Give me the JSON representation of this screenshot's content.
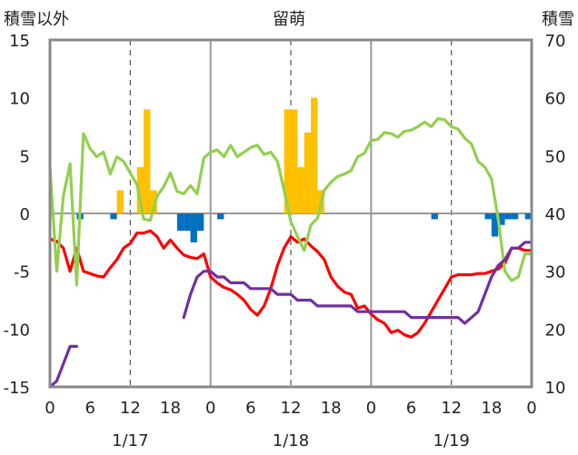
{
  "chart_data": {
    "type": "bar",
    "title": "留萌",
    "left_axis_label": "積雪以外",
    "right_axis_label": "積雪",
    "x_tick_labels": [
      "0",
      "6",
      "12",
      "18",
      "0",
      "6",
      "12",
      "18",
      "0",
      "6",
      "12",
      "18",
      "0"
    ],
    "date_labels": [
      "1/17",
      "1/18",
      "1/19"
    ],
    "xlim": [
      0,
      72
    ],
    "ylim_left": [
      -15,
      15
    ],
    "ylim_right": [
      10,
      70
    ],
    "left_ticks": [
      15,
      10,
      5,
      0,
      -5,
      -10,
      -15
    ],
    "right_ticks": [
      70,
      60,
      50,
      40,
      30,
      20,
      10
    ],
    "grid": true,
    "series": [
      {
        "type": "bar",
        "axis": "left",
        "color": "#FFC000",
        "x": [
          10.5,
          13.5,
          14.5,
          15.5,
          35.5,
          36.5,
          37.5,
          38.5,
          39.5,
          40.5
        ],
        "values": [
          2,
          4,
          9,
          2,
          9,
          9,
          4,
          7,
          10,
          2
        ]
      },
      {
        "type": "bar",
        "axis": "left",
        "color": "#0070C0",
        "x": [
          4.5,
          9.5,
          19.5,
          20.5,
          21.5,
          22.5,
          25.5,
          57.5,
          65.5,
          66.5,
          67.5,
          68.5,
          69.5,
          71.5
        ],
        "values": [
          -0.5,
          -0.5,
          -1.5,
          -1.5,
          -2.5,
          -1.5,
          -0.5,
          -0.5,
          -0.5,
          -2,
          -1,
          -0.5,
          -0.5,
          -0.5
        ]
      },
      {
        "type": "line",
        "axis": "left",
        "color": "#FF0000",
        "x": [
          0,
          1,
          2,
          3,
          4,
          5,
          6,
          7,
          8,
          9,
          10,
          11,
          12,
          13,
          14,
          15,
          16,
          17,
          18,
          19,
          20,
          21,
          22,
          23,
          24,
          25,
          26,
          27,
          28,
          29,
          30,
          31,
          32,
          33,
          34,
          35,
          36,
          37,
          38,
          39,
          40,
          41,
          42,
          43,
          44,
          45,
          46,
          47,
          48,
          49,
          50,
          51,
          52,
          53,
          54,
          55,
          56,
          57,
          58,
          59,
          60,
          61,
          62,
          63,
          64,
          65,
          66,
          67,
          68,
          69,
          70,
          71,
          72
        ],
        "values": [
          -2.2,
          -2.4,
          -3,
          -5,
          -3,
          -5,
          -5.2,
          -5.4,
          -5.5,
          -4.7,
          -4,
          -3,
          -2.6,
          -1.7,
          -1.7,
          -1.5,
          -2,
          -3,
          -2.3,
          -3,
          -3.6,
          -3.8,
          -3.9,
          -3.5,
          -5.5,
          -6,
          -6.4,
          -6.6,
          -7,
          -7.5,
          -8.3,
          -8.8,
          -8,
          -6.5,
          -4.5,
          -3,
          -2,
          -2.5,
          -2.2,
          -2.8,
          -3.3,
          -4,
          -5.5,
          -6.3,
          -6.8,
          -7,
          -8.2,
          -8,
          -8.7,
          -9.2,
          -9.5,
          -10.3,
          -10.1,
          -10.5,
          -10.7,
          -10.3,
          -9.5,
          -8.5,
          -7.5,
          -6.5,
          -5.5,
          -5.3,
          -5.3,
          -5.3,
          -5.2,
          -5.2,
          -5,
          -4.8,
          -4.3,
          -3,
          -3,
          -3.2,
          -3.2
        ]
      },
      {
        "type": "line",
        "axis": "left",
        "color": "#92D050",
        "x": [
          0,
          1,
          2,
          3,
          4,
          5,
          6,
          7,
          8,
          9,
          10,
          11,
          12,
          13,
          14,
          15,
          16,
          17,
          18,
          19,
          20,
          21,
          22,
          23,
          24,
          25,
          26,
          27,
          28,
          29,
          30,
          31,
          32,
          33,
          34,
          35,
          36,
          37,
          38,
          39,
          40,
          41,
          42,
          43,
          44,
          45,
          46,
          47,
          48,
          49,
          50,
          51,
          52,
          53,
          54,
          55,
          56,
          57,
          58,
          59,
          60,
          61,
          62,
          63,
          64,
          65,
          66,
          67,
          68,
          69,
          70,
          71,
          72
        ],
        "values": [
          4,
          -5,
          1.5,
          4.3,
          -6.2,
          6.9,
          5.6,
          4.9,
          5.3,
          3.4,
          4.9,
          4.5,
          3.5,
          2.5,
          -0.5,
          -0.6,
          1.5,
          2.3,
          3.5,
          1.9,
          1.7,
          2.4,
          1.7,
          4.8,
          5.3,
          5.5,
          4.9,
          5.9,
          4.9,
          5.3,
          5.7,
          5.9,
          5.1,
          5.3,
          4.5,
          2,
          -0.7,
          -2,
          -3.2,
          -1,
          -0.4,
          2,
          2.7,
          3.2,
          3.4,
          3.7,
          4.9,
          5.2,
          6.3,
          6.4,
          7,
          6.9,
          6.6,
          7.1,
          7.2,
          7.5,
          7.9,
          7.5,
          8.2,
          8.1,
          7.5,
          7.3,
          6.5,
          6,
          4.5,
          4,
          3,
          -0.5,
          -5,
          -5.8,
          -5.5,
          -3.5,
          -3.5
        ]
      },
      {
        "type": "line",
        "axis": "left",
        "color": "#7030A0",
        "segments": [
          {
            "x": [
              0,
              1,
              3,
              4
            ],
            "values": [
              -15,
              -14.5,
              -11.5,
              -11.5
            ]
          },
          {
            "x": [
              20,
              21,
              22,
              23,
              24,
              25,
              26,
              27,
              28,
              29,
              30,
              31,
              32,
              33,
              34,
              35,
              36,
              37,
              38,
              39,
              40,
              41,
              42,
              43,
              44,
              45,
              46,
              47,
              48,
              49,
              50,
              51,
              52,
              53,
              54,
              55,
              56,
              57,
              58,
              59,
              60,
              61,
              62,
              63,
              64,
              65,
              66,
              67,
              68,
              69,
              70,
              71,
              72
            ],
            "values": [
              -9,
              -7,
              -5.5,
              -5,
              -5,
              -5.5,
              -5.5,
              -6,
              -6,
              -6,
              -6.5,
              -6.5,
              -6.5,
              -6.5,
              -7,
              -7,
              -7,
              -7.5,
              -7.5,
              -7.5,
              -8,
              -8,
              -8,
              -8,
              -8,
              -8,
              -8.5,
              -8.5,
              -8.5,
              -8.5,
              -8.5,
              -8.5,
              -8.5,
              -8.5,
              -9,
              -9,
              -9,
              -9,
              -9,
              -9,
              -9,
              -9,
              -9.5,
              -9,
              -8.5,
              -7,
              -5.5,
              -4.5,
              -4,
              -3,
              -3,
              -2.5,
              -2.5
            ]
          }
        ]
      }
    ]
  }
}
